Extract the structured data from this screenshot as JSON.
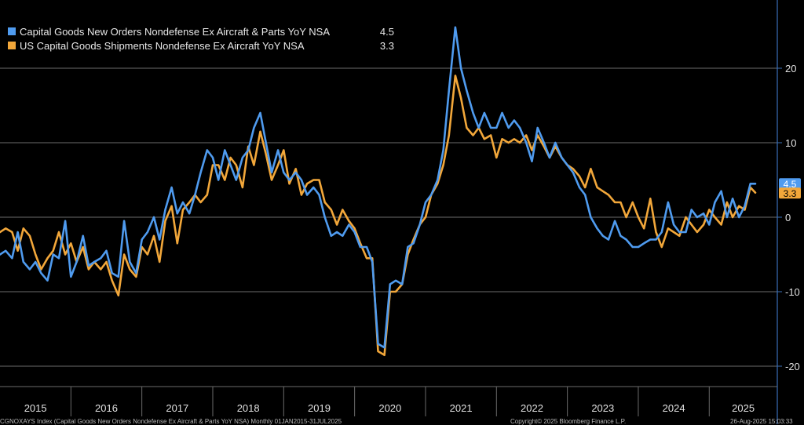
{
  "chart_data": {
    "type": "line",
    "title": "",
    "xlabel": "",
    "ylabel": "",
    "ylim": [
      -21,
      28
    ],
    "yticks": [
      20,
      10,
      0,
      -10,
      -20
    ],
    "x_range": [
      2015.0,
      2025.65
    ],
    "years": [
      "2015",
      "2016",
      "2017",
      "2018",
      "2019",
      "2020",
      "2021",
      "2022",
      "2023",
      "2024",
      "2025"
    ],
    "series": [
      {
        "name": "Capital Goods New Orders Nondefense Ex Aircraft & Parts YoY NSA",
        "legend_value": "4.5",
        "color": "#4f9bef",
        "points": [
          [
            2015.0,
            -5
          ],
          [
            2015.08,
            -4.5
          ],
          [
            2015.17,
            -5.5
          ],
          [
            2015.25,
            -2
          ],
          [
            2015.33,
            -6
          ],
          [
            2015.42,
            -7
          ],
          [
            2015.5,
            -6
          ],
          [
            2015.58,
            -7.5
          ],
          [
            2015.67,
            -8.5
          ],
          [
            2015.75,
            -5
          ],
          [
            2015.83,
            -5.5
          ],
          [
            2015.92,
            -0.5
          ],
          [
            2016.0,
            -8
          ],
          [
            2016.08,
            -6
          ],
          [
            2016.17,
            -2.5
          ],
          [
            2016.25,
            -6.5
          ],
          [
            2016.33,
            -6
          ],
          [
            2016.42,
            -5.5
          ],
          [
            2016.5,
            -4.5
          ],
          [
            2016.58,
            -7.5
          ],
          [
            2016.67,
            -8
          ],
          [
            2016.75,
            -0.5
          ],
          [
            2016.83,
            -6
          ],
          [
            2016.92,
            -7.5
          ],
          [
            2017.0,
            -3
          ],
          [
            2017.08,
            -2
          ],
          [
            2017.17,
            0
          ],
          [
            2017.25,
            -3
          ],
          [
            2017.33,
            1
          ],
          [
            2017.42,
            4
          ],
          [
            2017.5,
            0.5
          ],
          [
            2017.58,
            2
          ],
          [
            2017.67,
            0.5
          ],
          [
            2017.75,
            3
          ],
          [
            2017.83,
            6
          ],
          [
            2017.92,
            9
          ],
          [
            2018.0,
            8
          ],
          [
            2018.08,
            5
          ],
          [
            2018.17,
            9
          ],
          [
            2018.25,
            7
          ],
          [
            2018.33,
            5
          ],
          [
            2018.42,
            8
          ],
          [
            2018.5,
            9
          ],
          [
            2018.58,
            12
          ],
          [
            2018.67,
            14
          ],
          [
            2018.75,
            10
          ],
          [
            2018.83,
            6
          ],
          [
            2018.92,
            9
          ],
          [
            2019.0,
            6
          ],
          [
            2019.08,
            5
          ],
          [
            2019.17,
            6
          ],
          [
            2019.25,
            5
          ],
          [
            2019.33,
            3
          ],
          [
            2019.42,
            4
          ],
          [
            2019.5,
            3
          ],
          [
            2019.58,
            0
          ],
          [
            2019.67,
            -2.5
          ],
          [
            2019.75,
            -2
          ],
          [
            2019.83,
            -2.5
          ],
          [
            2019.92,
            -1
          ],
          [
            2020.0,
            -2
          ],
          [
            2020.08,
            -4
          ],
          [
            2020.17,
            -4
          ],
          [
            2020.25,
            -6
          ],
          [
            2020.33,
            -17
          ],
          [
            2020.42,
            -17.5
          ],
          [
            2020.5,
            -9
          ],
          [
            2020.58,
            -8.5
          ],
          [
            2020.67,
            -9
          ],
          [
            2020.75,
            -4
          ],
          [
            2020.83,
            -3.5
          ],
          [
            2020.92,
            -1
          ],
          [
            2021.0,
            2
          ],
          [
            2021.08,
            3
          ],
          [
            2021.17,
            5
          ],
          [
            2021.25,
            9
          ],
          [
            2021.33,
            17
          ],
          [
            2021.42,
            25.5
          ],
          [
            2021.5,
            20
          ],
          [
            2021.58,
            17
          ],
          [
            2021.67,
            14
          ],
          [
            2021.75,
            12
          ],
          [
            2021.83,
            14
          ],
          [
            2021.92,
            12
          ],
          [
            2022.0,
            12
          ],
          [
            2022.08,
            14
          ],
          [
            2022.17,
            12
          ],
          [
            2022.25,
            13
          ],
          [
            2022.33,
            12
          ],
          [
            2022.42,
            10
          ],
          [
            2022.5,
            7.5
          ],
          [
            2022.58,
            12
          ],
          [
            2022.67,
            10
          ],
          [
            2022.75,
            8
          ],
          [
            2022.83,
            10
          ],
          [
            2022.92,
            8
          ],
          [
            2023.0,
            7
          ],
          [
            2023.08,
            6
          ],
          [
            2023.17,
            4
          ],
          [
            2023.25,
            3
          ],
          [
            2023.33,
            0
          ],
          [
            2023.42,
            -1.5
          ],
          [
            2023.5,
            -2.5
          ],
          [
            2023.58,
            -3
          ],
          [
            2023.67,
            -0.5
          ],
          [
            2023.75,
            -2.5
          ],
          [
            2023.83,
            -3
          ],
          [
            2023.92,
            -4
          ],
          [
            2024.0,
            -4
          ],
          [
            2024.08,
            -3.5
          ],
          [
            2024.17,
            -3
          ],
          [
            2024.25,
            -3
          ],
          [
            2024.33,
            -2
          ],
          [
            2024.42,
            2
          ],
          [
            2024.5,
            -1
          ],
          [
            2024.58,
            -2
          ],
          [
            2024.67,
            -2
          ],
          [
            2024.75,
            1
          ],
          [
            2024.83,
            0
          ],
          [
            2024.92,
            0.5
          ],
          [
            2025.0,
            -1
          ],
          [
            2025.08,
            2
          ],
          [
            2025.17,
            3.5
          ],
          [
            2025.25,
            0
          ],
          [
            2025.33,
            2.5
          ],
          [
            2025.42,
            0
          ],
          [
            2025.5,
            1.5
          ],
          [
            2025.58,
            4.5
          ],
          [
            2025.65,
            4.5
          ]
        ]
      },
      {
        "name": "US Capital Goods Shipments Nondefense Ex Aircraft YoY NSA",
        "legend_value": "3.3",
        "color": "#f2a73a",
        "points": [
          [
            2015.0,
            -2
          ],
          [
            2015.08,
            -1.5
          ],
          [
            2015.17,
            -2
          ],
          [
            2015.25,
            -4.5
          ],
          [
            2015.33,
            -1.5
          ],
          [
            2015.42,
            -2.5
          ],
          [
            2015.5,
            -5
          ],
          [
            2015.58,
            -7
          ],
          [
            2015.67,
            -5.5
          ],
          [
            2015.75,
            -4.5
          ],
          [
            2015.83,
            -2
          ],
          [
            2015.92,
            -5
          ],
          [
            2016.0,
            -3.5
          ],
          [
            2016.08,
            -6
          ],
          [
            2016.17,
            -4
          ],
          [
            2016.25,
            -7
          ],
          [
            2016.33,
            -6
          ],
          [
            2016.42,
            -7
          ],
          [
            2016.5,
            -6
          ],
          [
            2016.58,
            -8.5
          ],
          [
            2016.67,
            -10.5
          ],
          [
            2016.75,
            -5
          ],
          [
            2016.83,
            -7
          ],
          [
            2016.92,
            -8
          ],
          [
            2017.0,
            -4
          ],
          [
            2017.08,
            -5
          ],
          [
            2017.17,
            -2.5
          ],
          [
            2017.25,
            -6
          ],
          [
            2017.33,
            -0.5
          ],
          [
            2017.42,
            1.5
          ],
          [
            2017.5,
            -3.5
          ],
          [
            2017.58,
            1
          ],
          [
            2017.67,
            2
          ],
          [
            2017.75,
            3
          ],
          [
            2017.83,
            2
          ],
          [
            2017.92,
            3
          ],
          [
            2018.0,
            7
          ],
          [
            2018.08,
            7
          ],
          [
            2018.17,
            5
          ],
          [
            2018.25,
            8
          ],
          [
            2018.33,
            7
          ],
          [
            2018.42,
            4
          ],
          [
            2018.5,
            9.5
          ],
          [
            2018.58,
            7
          ],
          [
            2018.67,
            11.5
          ],
          [
            2018.75,
            8.5
          ],
          [
            2018.83,
            5
          ],
          [
            2018.92,
            7
          ],
          [
            2019.0,
            9
          ],
          [
            2019.08,
            4.5
          ],
          [
            2019.17,
            6.5
          ],
          [
            2019.25,
            3
          ],
          [
            2019.33,
            4.5
          ],
          [
            2019.42,
            5
          ],
          [
            2019.5,
            5
          ],
          [
            2019.58,
            2
          ],
          [
            2019.67,
            1
          ],
          [
            2019.75,
            -1
          ],
          [
            2019.83,
            1
          ],
          [
            2019.92,
            -0.5
          ],
          [
            2020.0,
            -1.5
          ],
          [
            2020.08,
            -3.5
          ],
          [
            2020.17,
            -5.5
          ],
          [
            2020.25,
            -5.5
          ],
          [
            2020.33,
            -18
          ],
          [
            2020.42,
            -18.5
          ],
          [
            2020.5,
            -10
          ],
          [
            2020.58,
            -10
          ],
          [
            2020.67,
            -9
          ],
          [
            2020.75,
            -5
          ],
          [
            2020.83,
            -3
          ],
          [
            2020.92,
            -1
          ],
          [
            2021.0,
            0
          ],
          [
            2021.08,
            3
          ],
          [
            2021.17,
            4.5
          ],
          [
            2021.25,
            7
          ],
          [
            2021.33,
            11
          ],
          [
            2021.42,
            19
          ],
          [
            2021.5,
            16
          ],
          [
            2021.58,
            12
          ],
          [
            2021.67,
            11
          ],
          [
            2021.75,
            12
          ],
          [
            2021.83,
            10.5
          ],
          [
            2021.92,
            11
          ],
          [
            2022.0,
            8
          ],
          [
            2022.08,
            10.5
          ],
          [
            2022.17,
            10
          ],
          [
            2022.25,
            10.5
          ],
          [
            2022.33,
            10
          ],
          [
            2022.42,
            11
          ],
          [
            2022.5,
            9
          ],
          [
            2022.58,
            11
          ],
          [
            2022.67,
            9.5
          ],
          [
            2022.75,
            8
          ],
          [
            2022.83,
            9.5
          ],
          [
            2022.92,
            8
          ],
          [
            2023.0,
            7
          ],
          [
            2023.08,
            6.5
          ],
          [
            2023.17,
            5.5
          ],
          [
            2023.25,
            4
          ],
          [
            2023.33,
            6.5
          ],
          [
            2023.42,
            4
          ],
          [
            2023.5,
            3.5
          ],
          [
            2023.58,
            3
          ],
          [
            2023.67,
            2
          ],
          [
            2023.75,
            2
          ],
          [
            2023.83,
            0
          ],
          [
            2023.92,
            2
          ],
          [
            2024.0,
            0
          ],
          [
            2024.08,
            -1.5
          ],
          [
            2024.17,
            2.5
          ],
          [
            2024.25,
            -2
          ],
          [
            2024.33,
            -4
          ],
          [
            2024.42,
            -1.5
          ],
          [
            2024.5,
            -2
          ],
          [
            2024.58,
            -2.5
          ],
          [
            2024.67,
            0
          ],
          [
            2024.75,
            -1
          ],
          [
            2024.83,
            -2
          ],
          [
            2024.92,
            -1
          ],
          [
            2025.0,
            1
          ],
          [
            2025.08,
            0
          ],
          [
            2025.17,
            -1
          ],
          [
            2025.25,
            2
          ],
          [
            2025.33,
            0
          ],
          [
            2025.42,
            1.5
          ],
          [
            2025.5,
            1
          ],
          [
            2025.58,
            4
          ],
          [
            2025.65,
            3.3
          ]
        ]
      }
    ],
    "end_labels": [
      {
        "series": 0,
        "text": "4.5",
        "bg": "#4f9bef",
        "fg": "#ffffff",
        "y": 4.5
      },
      {
        "series": 1,
        "text": "3.3",
        "bg": "#f2a73a",
        "fg": "#000000",
        "y": 3.3
      }
    ]
  },
  "footer": {
    "left": "CGNOXAYS Index (Capital Goods New Orders Nondefense Ex Aircraft & Parts YoY NSA)  Monthly 01JAN2015-31JUL2025",
    "center": "Copyright© 2025 Bloomberg Finance L.P.",
    "right": "26-Aug-2025 15:03:33"
  },
  "colors": {
    "grid": "#6b6b6b",
    "axis": "#3a6fb8",
    "background": "#000000"
  }
}
